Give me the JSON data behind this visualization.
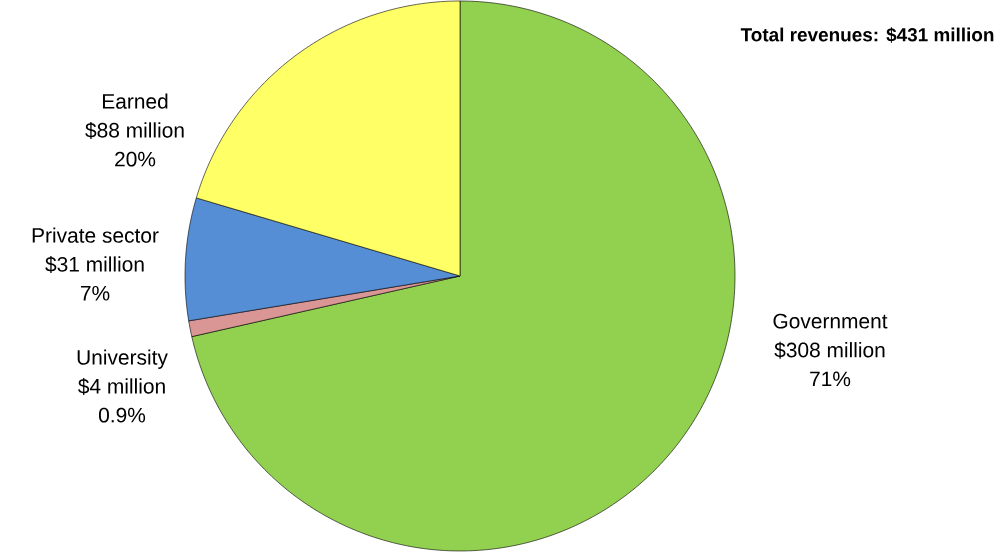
{
  "chart_data": {
    "type": "pie",
    "title": "Total revenues: $431 million",
    "categories": [
      "Government",
      "University",
      "Private sector",
      "Earned"
    ],
    "values": [
      308,
      4,
      31,
      88
    ],
    "colors": [
      "#92d050",
      "#d99694",
      "#558ed5",
      "#ffff66"
    ],
    "value_labels": [
      "$308 million",
      "$4 million",
      "$31 million",
      "$88 million"
    ],
    "annotations": [
      "71%",
      "0.9%",
      "7%",
      "20%"
    ]
  }
}
